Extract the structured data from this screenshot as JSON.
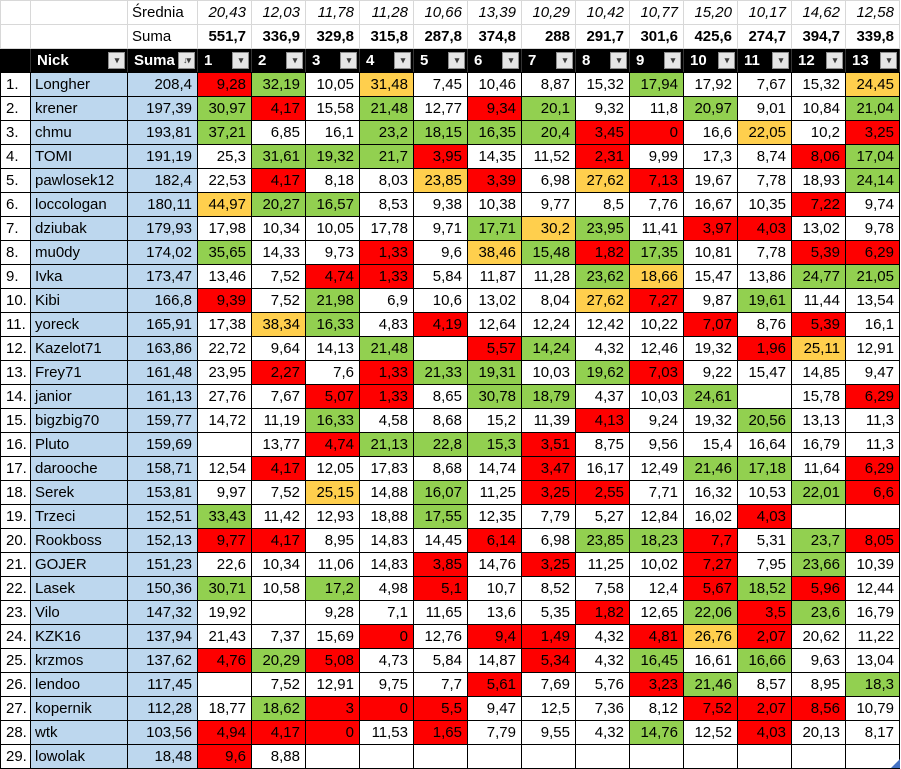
{
  "colors": {
    "red": "#FE0000",
    "green": "#92D050",
    "gold": "#FFCF4D",
    "light_blue": "#BDD7EE",
    "header_bg": "#000000",
    "header_fg": "#FFFFFF"
  },
  "summary": {
    "average_label": "Średnia",
    "average_values": [
      "20,43",
      "12,03",
      "11,78",
      "11,28",
      "10,66",
      "13,39",
      "10,29",
      "10,42",
      "10,77",
      "15,20",
      "10,17",
      "14,62",
      "12,58"
    ],
    "sum_label": "Suma",
    "sum_values": [
      "551,7",
      "336,9",
      "329,8",
      "315,8",
      "287,8",
      "374,8",
      "288",
      "291,7",
      "301,6",
      "425,6",
      "274,7",
      "394,7",
      "339,8"
    ]
  },
  "header": {
    "nick_label": "Nick",
    "suma_label": "Suma",
    "rounds": [
      "1",
      "2",
      "3",
      "4",
      "5",
      "6",
      "7",
      "8",
      "9",
      "10",
      "11",
      "12",
      "13"
    ],
    "filter_icon": "▾",
    "sort_desc_icon": "↓▾"
  },
  "rows": [
    {
      "rank": "1.",
      "nick": "Longher",
      "suma": "208,4",
      "scores": [
        "9,28",
        "32,19",
        "10,05",
        "31,48",
        "7,45",
        "10,46",
        "8,87",
        "15,32",
        "17,94",
        "17,92",
        "7,67",
        "15,32",
        "24,45"
      ],
      "colors": "rgwywwwwgwwwy"
    },
    {
      "rank": "2.",
      "nick": "krener",
      "suma": "197,39",
      "scores": [
        "30,97",
        "4,17",
        "15,58",
        "21,48",
        "12,77",
        "9,34",
        "20,1",
        "9,32",
        "11,8",
        "20,97",
        "9,01",
        "10,84",
        "21,04"
      ],
      "colors": "grwgwrgwwgwwg"
    },
    {
      "rank": "3.",
      "nick": "chmu",
      "suma": "193,81",
      "scores": [
        "37,21",
        "6,85",
        "16,1",
        "23,2",
        "18,15",
        "16,35",
        "20,4",
        "3,45",
        "0",
        "16,6",
        "22,05",
        "10,2",
        "3,25"
      ],
      "colors": "gwwggggrrwywr"
    },
    {
      "rank": "4.",
      "nick": "TOMI",
      "suma": "191,19",
      "scores": [
        "25,3",
        "31,61",
        "19,32",
        "21,7",
        "3,95",
        "14,35",
        "11,52",
        "2,31",
        "9,99",
        "17,3",
        "8,74",
        "8,06",
        "17,04"
      ],
      "colors": "wgggrwwrwwwrg"
    },
    {
      "rank": "5.",
      "nick": "pawlosek12",
      "suma": "182,4",
      "scores": [
        "22,53",
        "4,17",
        "8,18",
        "8,03",
        "23,85",
        "3,39",
        "6,98",
        "27,62",
        "7,13",
        "19,67",
        "7,78",
        "18,93",
        "24,14"
      ],
      "colors": "wrwwyrwyrwwwg"
    },
    {
      "rank": "6.",
      "nick": "loccologan",
      "suma": "180,11",
      "scores": [
        "44,97",
        "20,27",
        "16,57",
        "8,53",
        "9,38",
        "10,38",
        "9,77",
        "8,5",
        "7,76",
        "16,67",
        "10,35",
        "7,22",
        "9,74"
      ],
      "colors": "yggwwwwwwwwrw"
    },
    {
      "rank": "7.",
      "nick": "dziubak",
      "suma": "179,93",
      "scores": [
        "17,98",
        "10,34",
        "10,05",
        "17,78",
        "9,71",
        "17,71",
        "30,2",
        "23,95",
        "11,41",
        "3,97",
        "4,03",
        "13,02",
        "9,78"
      ],
      "colors": "wwwwwgygwrrww"
    },
    {
      "rank": "8.",
      "nick": "mu0dy",
      "suma": "174,02",
      "scores": [
        "35,65",
        "14,33",
        "9,73",
        "1,33",
        "9,6",
        "38,46",
        "15,48",
        "1,82",
        "17,35",
        "10,81",
        "7,78",
        "5,39",
        "6,29"
      ],
      "colors": "gwwrwygrgwwrr"
    },
    {
      "rank": "9.",
      "nick": "Ivka",
      "suma": "173,47",
      "scores": [
        "13,46",
        "7,52",
        "4,74",
        "1,33",
        "5,84",
        "11,87",
        "11,28",
        "23,62",
        "18,66",
        "15,47",
        "13,86",
        "24,77",
        "21,05"
      ],
      "colors": "wwrrwwwgywwgg"
    },
    {
      "rank": "10.",
      "nick": "Kibi",
      "suma": "166,8",
      "scores": [
        "9,39",
        "7,52",
        "21,98",
        "6,9",
        "10,6",
        "13,02",
        "8,04",
        "27,62",
        "7,27",
        "9,87",
        "19,61",
        "11,44",
        "13,54"
      ],
      "colors": "rwgwwwwyrwgww"
    },
    {
      "rank": "11.",
      "nick": "yoreck",
      "suma": "165,91",
      "scores": [
        "17,38",
        "38,34",
        "16,33",
        "4,83",
        "4,19",
        "12,64",
        "12,24",
        "12,42",
        "10,22",
        "7,07",
        "8,76",
        "5,39",
        "16,1"
      ],
      "colors": "wygwrwwwwrwrw"
    },
    {
      "rank": "12.",
      "nick": "Kazelot71",
      "suma": "163,86",
      "scores": [
        "22,72",
        "9,64",
        "14,13",
        "21,48",
        "",
        "5,57",
        "14,24",
        "4,32",
        "12,46",
        "19,32",
        "1,96",
        "25,11",
        "12,91"
      ],
      "colors": "wwwgwrgwwwryw"
    },
    {
      "rank": "13.",
      "nick": "Frey71",
      "suma": "161,48",
      "scores": [
        "23,95",
        "2,27",
        "7,6",
        "1,33",
        "21,33",
        "19,31",
        "10,03",
        "19,62",
        "7,03",
        "9,22",
        "15,47",
        "14,85",
        "9,47"
      ],
      "colors": "wrwrggwgrwwww"
    },
    {
      "rank": "14.",
      "nick": "janior",
      "suma": "161,13",
      "scores": [
        "27,76",
        "7,67",
        "5,07",
        "1,33",
        "8,65",
        "30,78",
        "18,79",
        "4,37",
        "10,03",
        "24,61",
        "",
        "15,78",
        "6,29"
      ],
      "colors": "wwrrwggwwgwwr"
    },
    {
      "rank": "15.",
      "nick": "bigzbig70",
      "suma": "159,77",
      "scores": [
        "14,72",
        "11,19",
        "16,33",
        "4,58",
        "8,68",
        "15,2",
        "11,39",
        "4,13",
        "9,24",
        "19,32",
        "20,56",
        "13,13",
        "11,3"
      ],
      "colors": "wwgwwwwrwwgww"
    },
    {
      "rank": "16.",
      "nick": "Pluto",
      "suma": "159,69",
      "scores": [
        "",
        "13,77",
        "4,74",
        "21,13",
        "22,8",
        "15,3",
        "3,51",
        "8,75",
        "9,56",
        "15,4",
        "16,64",
        "16,79",
        "11,3"
      ],
      "colors": "wwrgggrwwwwww"
    },
    {
      "rank": "17.",
      "nick": "darooche",
      "suma": "158,71",
      "scores": [
        "12,54",
        "4,17",
        "12,05",
        "17,83",
        "8,68",
        "14,74",
        "3,47",
        "16,17",
        "12,49",
        "21,46",
        "17,18",
        "11,64",
        "6,29"
      ],
      "colors": "wrwwwwrwwggwr"
    },
    {
      "rank": "18.",
      "nick": "Serek",
      "suma": "153,81",
      "scores": [
        "9,97",
        "7,52",
        "25,15",
        "14,88",
        "16,07",
        "11,25",
        "3,25",
        "2,55",
        "7,71",
        "16,32",
        "10,53",
        "22,01",
        "6,6"
      ],
      "colors": "wwywgwrrwwwgr"
    },
    {
      "rank": "19.",
      "nick": "Trzeci",
      "suma": "152,51",
      "scores": [
        "33,43",
        "11,42",
        "12,93",
        "18,88",
        "17,55",
        "12,35",
        "7,79",
        "5,27",
        "12,84",
        "16,02",
        "4,03",
        "",
        ""
      ],
      "colors": "gwwwgwwwwwrww"
    },
    {
      "rank": "20.",
      "nick": "Rookboss",
      "suma": "152,13",
      "scores": [
        "9,77",
        "4,17",
        "8,95",
        "14,83",
        "14,45",
        "6,14",
        "6,98",
        "23,85",
        "18,23",
        "7,7",
        "5,31",
        "23,7",
        "8,05"
      ],
      "colors": "rrwwwrwggrwgr"
    },
    {
      "rank": "21.",
      "nick": "GOJER",
      "suma": "151,23",
      "scores": [
        "22,6",
        "10,34",
        "11,06",
        "14,83",
        "3,85",
        "14,76",
        "3,25",
        "11,25",
        "10,02",
        "7,27",
        "7,95",
        "23,66",
        "10,39"
      ],
      "colors": "wwwwrwrwwrwgw"
    },
    {
      "rank": "22.",
      "nick": "Lasek",
      "suma": "150,36",
      "scores": [
        "30,71",
        "10,58",
        "17,2",
        "4,98",
        "5,1",
        "10,7",
        "8,52",
        "7,58",
        "12,4",
        "5,67",
        "18,52",
        "5,96",
        "12,44"
      ],
      "colors": "gwgwrwwwwrgrw"
    },
    {
      "rank": "23.",
      "nick": "Vilo",
      "suma": "147,32",
      "scores": [
        "19,92",
        "",
        "9,28",
        "7,1",
        "11,65",
        "13,6",
        "5,35",
        "1,82",
        "12,65",
        "22,06",
        "3,5",
        "23,6",
        "16,79"
      ],
      "colors": "wwwwwwwrwgrgw"
    },
    {
      "rank": "24.",
      "nick": "KZK16",
      "suma": "137,94",
      "scores": [
        "21,43",
        "7,37",
        "15,69",
        "0",
        "12,76",
        "9,4",
        "1,49",
        "4,32",
        "4,81",
        "26,76",
        "2,07",
        "20,62",
        "11,22"
      ],
      "colors": "wwwrwrrwryrww"
    },
    {
      "rank": "25.",
      "nick": "krzmos",
      "suma": "137,62",
      "scores": [
        "4,76",
        "20,29",
        "5,08",
        "4,73",
        "5,84",
        "14,87",
        "5,34",
        "4,32",
        "16,45",
        "16,61",
        "16,66",
        "9,63",
        "13,04"
      ],
      "colors": "rgrwwwrwgwgww"
    },
    {
      "rank": "26.",
      "nick": "lendoo",
      "suma": "117,45",
      "scores": [
        "",
        "7,52",
        "12,91",
        "9,75",
        "7,7",
        "5,61",
        "7,69",
        "5,76",
        "3,23",
        "21,46",
        "8,57",
        "8,95",
        "18,3"
      ],
      "colors": "wwwwwrwwrgwwg"
    },
    {
      "rank": "27.",
      "nick": "kopernik",
      "suma": "112,28",
      "scores": [
        "18,77",
        "18,62",
        "3",
        "0",
        "5,5",
        "9,47",
        "12,5",
        "7,36",
        "8,12",
        "7,52",
        "2,07",
        "8,56",
        "10,79"
      ],
      "colors": "wgrrrwwwwrrrw"
    },
    {
      "rank": "28.",
      "nick": "wtk",
      "suma": "103,56",
      "scores": [
        "4,94",
        "4,17",
        "0",
        "11,53",
        "1,65",
        "7,79",
        "9,55",
        "4,32",
        "14,76",
        "12,52",
        "4,03",
        "20,13",
        "8,17"
      ],
      "colors": "rrrwrwwwgwrww"
    },
    {
      "rank": "29.",
      "nick": "lowolak",
      "suma": "18,48",
      "scores": [
        "9,6",
        "8,88",
        "",
        "",
        "",
        "",
        "",
        "",
        "",
        "",
        "",
        "",
        ""
      ],
      "colors": "rwwwwwwwwwwww"
    }
  ]
}
